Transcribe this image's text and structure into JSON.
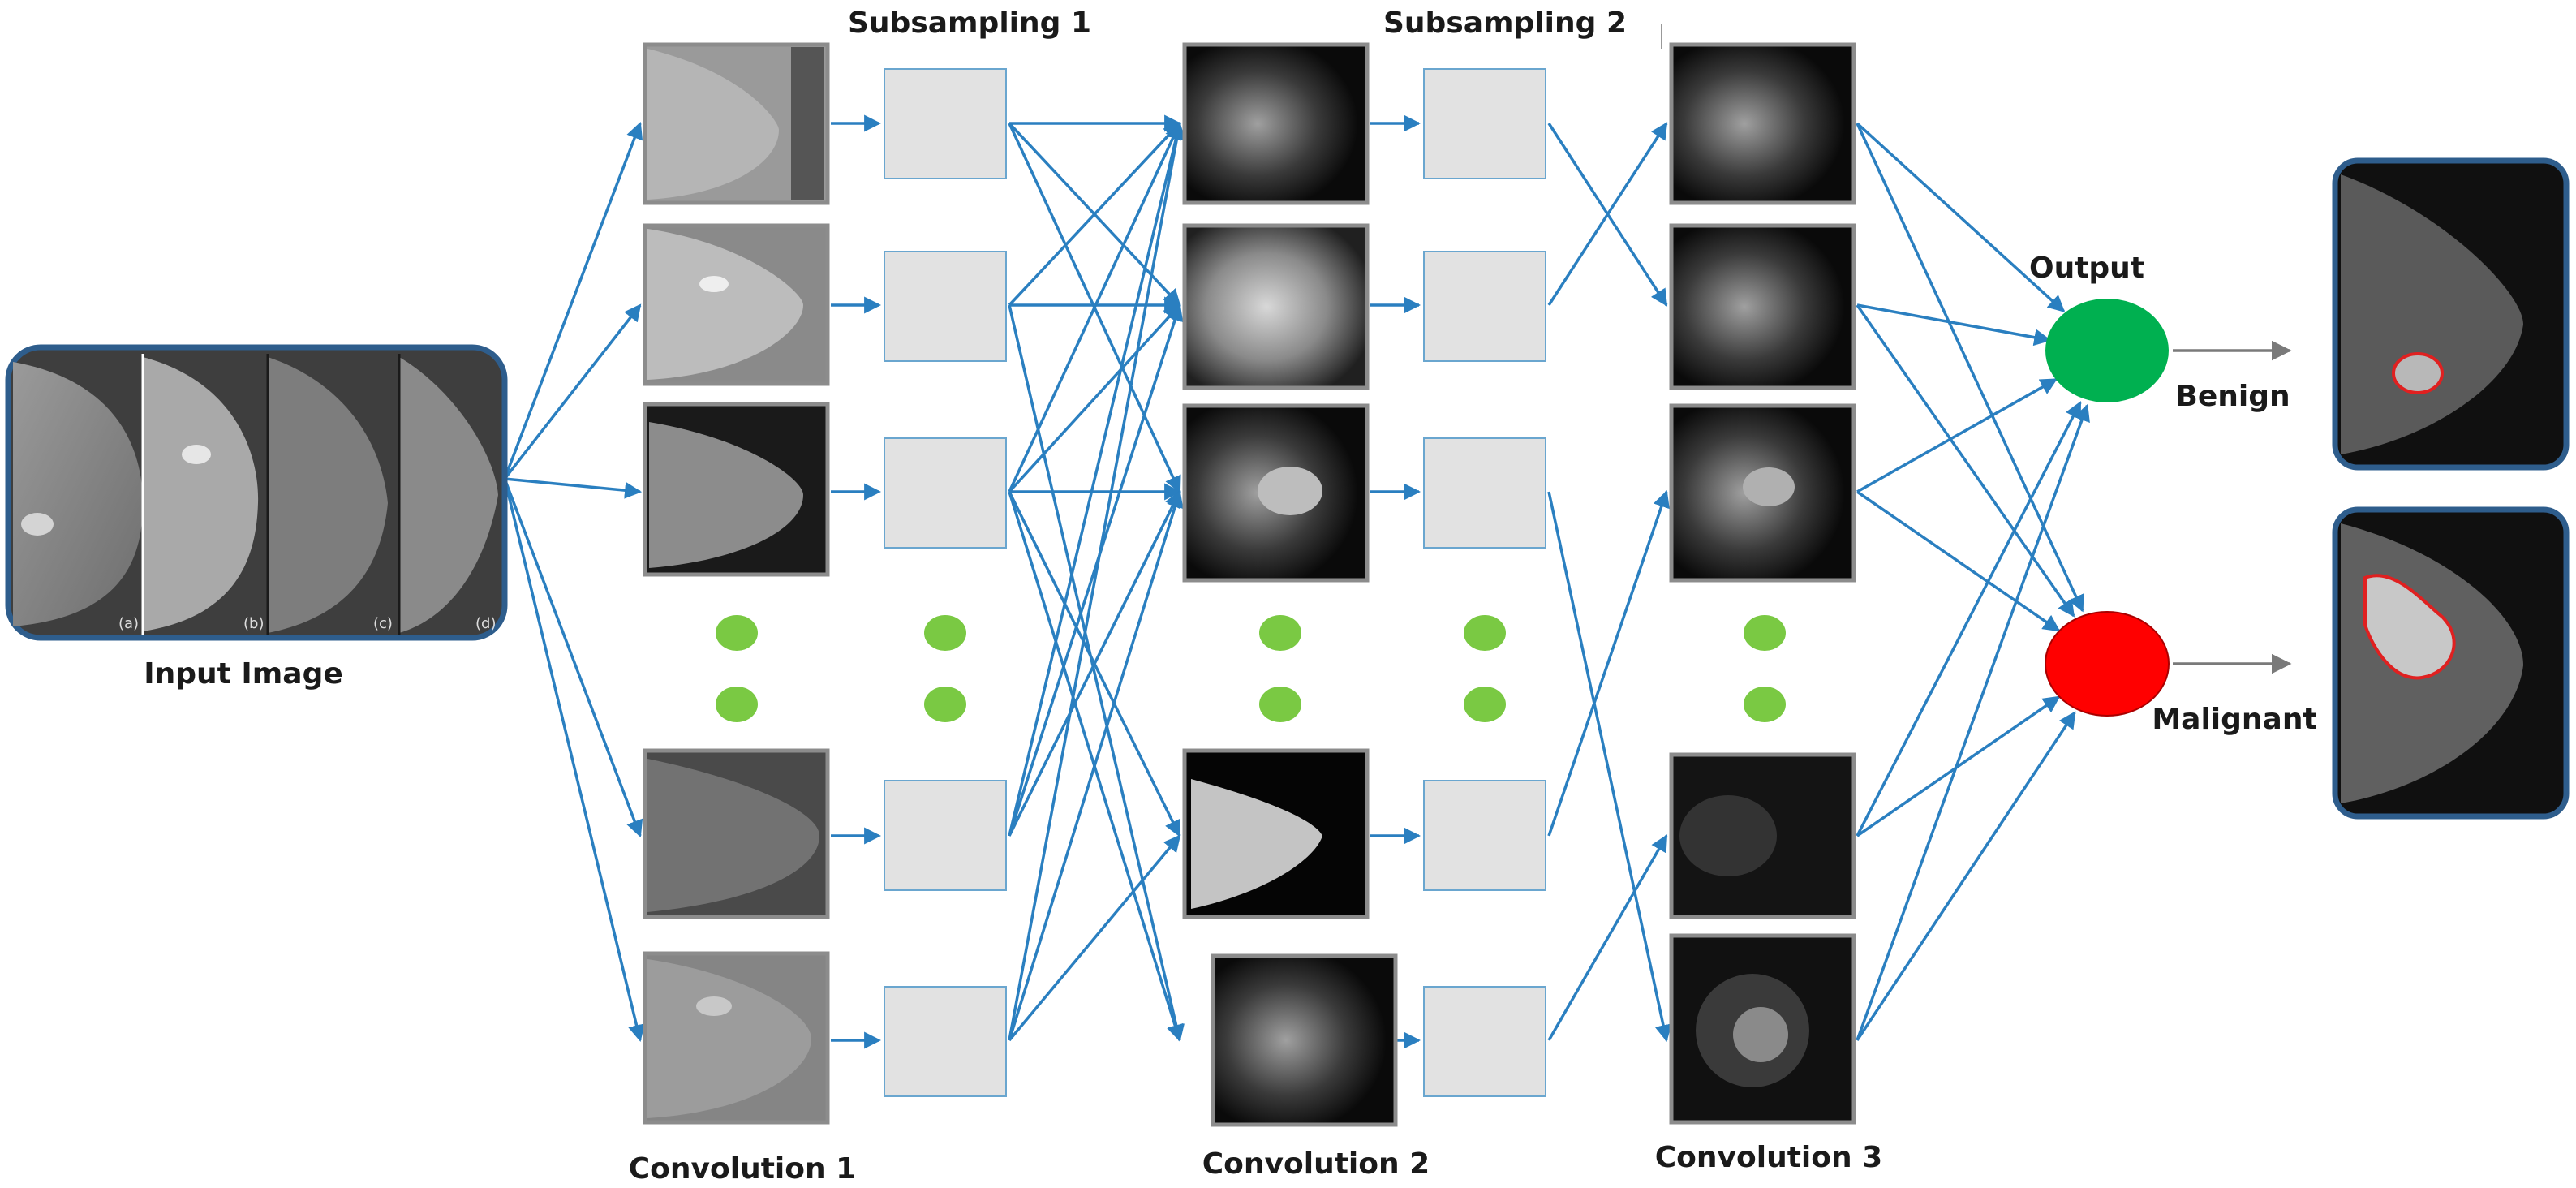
{
  "labels": {
    "input": "Input Image",
    "conv1": "Convolution 1",
    "sub1": "Subsampling 1",
    "conv2": "Convolution 2",
    "sub2": "Subsampling 2",
    "conv3": "Convolution 3",
    "output": "Output",
    "benign": "Benign",
    "malignant": "Malignant"
  },
  "input_panel_letters": [
    "(a)",
    "(b)",
    "(c)",
    "(d)"
  ],
  "colors": {
    "edge": "#2a7fc0",
    "benign_node": "#00b050",
    "malignant_node": "#ff0000",
    "ellipsis_dots": "#7ac943",
    "pool_box": "#e2e2e2",
    "tumor_outline": "#e02020"
  }
}
